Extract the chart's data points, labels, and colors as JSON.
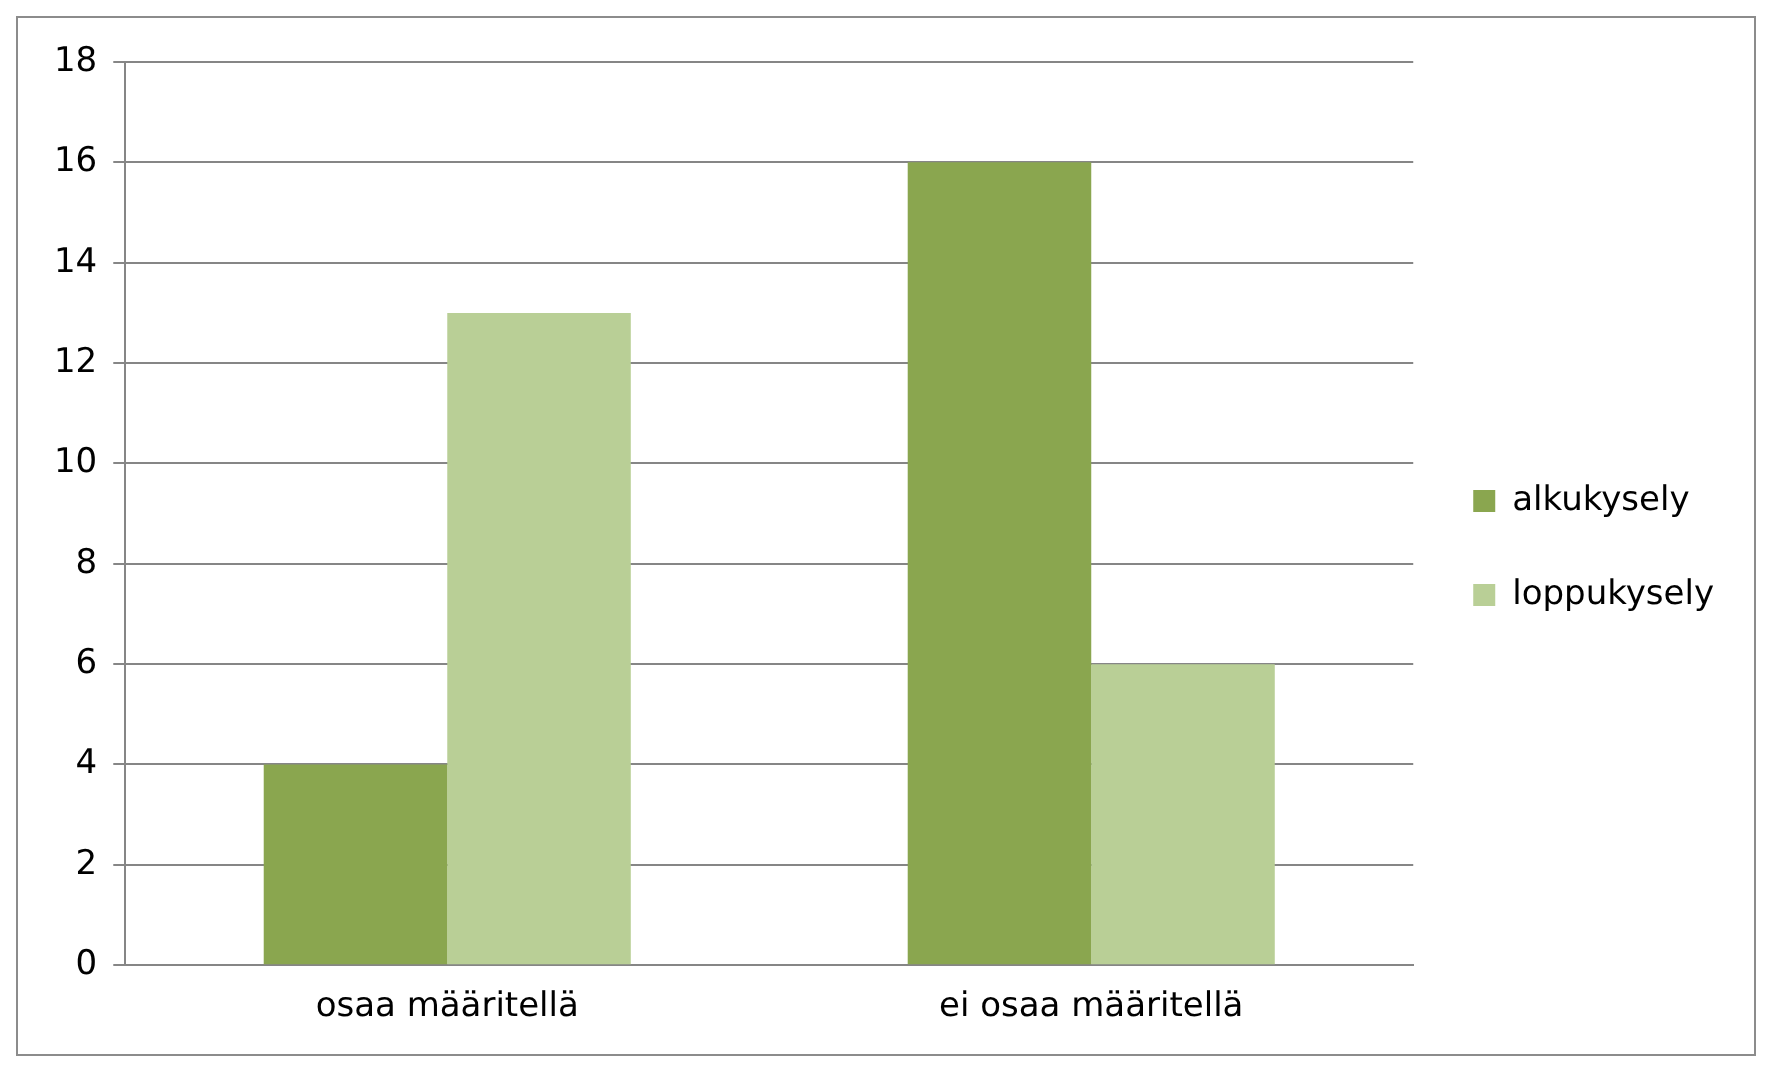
{
  "chart_data": {
    "type": "bar",
    "categories": [
      "osaa määritellä",
      "ei osaa määritellä"
    ],
    "series": [
      {
        "name": "alkukysely",
        "color": "#8aa64f",
        "values": [
          4,
          16
        ]
      },
      {
        "name": "loppukysely",
        "color": "#b9cf96",
        "values": [
          13,
          6
        ]
      }
    ],
    "ylim": [
      0,
      18
    ],
    "yticks": [
      0,
      2,
      4,
      6,
      8,
      10,
      12,
      14,
      16,
      18
    ],
    "grid": "y",
    "legend": "right"
  }
}
